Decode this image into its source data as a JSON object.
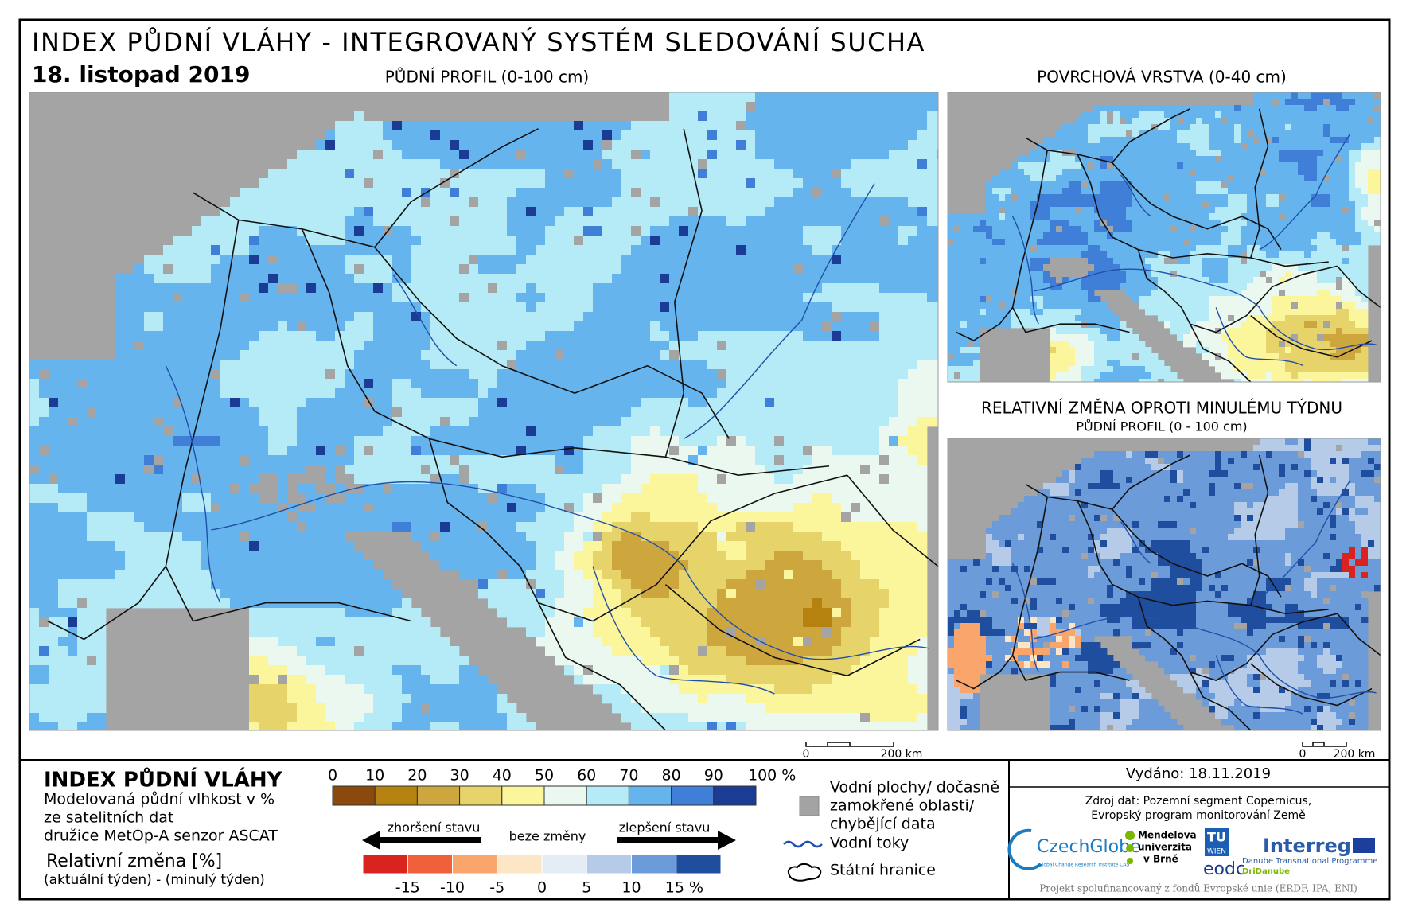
{
  "header": {
    "title": "INDEX PŮDNÍ VLÁHY - INTEGROVANÝ SYSTÉM SLEDOVÁNÍ SUCHA",
    "date": "18. listopad 2019"
  },
  "maps": {
    "main_title": "PŮDNÍ PROFIL (0-100 cm)",
    "surface_title": "POVRCHOVÁ VRSTVA (0-40 cm)",
    "change_title": "RELATIVNÍ ZMĚNA OPROTI MINULÉMU TÝDNU",
    "change_subtitle": "PŮDNÍ PROFIL (0 - 100 cm)",
    "scalebars": [
      {
        "start": "0",
        "end": "200 km"
      },
      {
        "start": "0",
        "end": "200 km"
      }
    ]
  },
  "legend": {
    "title": "INDEX PŮDNÍ VLÁHY",
    "description": [
      "Modelovaná půdní vlhkost v %",
      "ze satelitních dat",
      "družice MetOp-A senzor ASCAT"
    ],
    "change_title": "Relativní změna [%]",
    "change_description": "(aktuální týden) - (minulý týden)",
    "index_ticks": [
      "0",
      "10",
      "20",
      "30",
      "40",
      "50",
      "60",
      "70",
      "80",
      "90",
      "100 %"
    ],
    "index_colors": [
      "#8b4a0c",
      "#b5820f",
      "#cda73e",
      "#e6d46a",
      "#fbf59c",
      "#eaf8f0",
      "#b4ebf6",
      "#66b4ee",
      "#3f7fd8",
      "#1b3c94"
    ],
    "worse": "zhoršení stavu",
    "same": "beze změny",
    "better": "zlepšení stavu",
    "change_ticks": [
      "-15",
      "-10",
      "-5",
      "0",
      "5",
      "10",
      "15 %"
    ],
    "change_colors": [
      "#d9231f",
      "#f0603a",
      "#f9a56c",
      "#fde6c6",
      "#e4ecf5",
      "#b5cbe8",
      "#6b9bd8",
      "#1f4e9e"
    ],
    "symbols": {
      "water": [
        "Vodní plochy/ dočasně",
        "zamokřené oblasti/",
        "chybějící data"
      ],
      "rivers": "Vodní toky",
      "borders": "Státní hranice"
    }
  },
  "footer": {
    "issued": "Vydáno: 18.11.2019",
    "source": [
      "Zdroj dat: Pozemní segment Copernicus,",
      "Evropský program monitorování Země"
    ],
    "logos": {
      "czechglobe": "CzechGlobe",
      "czechglobe_sub": "Global Change Research Institute CAS",
      "mendel": [
        "Mendelova",
        "univerzita",
        "v Brně"
      ],
      "tu": [
        "TU",
        "WIEN"
      ],
      "eodc": "eodc",
      "interreg": "Interreg",
      "interreg_sub": "Danube Transnational Programme",
      "dridanube": "DriDanube"
    },
    "funding": "Projekt spolufinancovaný z fondů Evropské unie (ERDF, IPA, ENI)"
  }
}
